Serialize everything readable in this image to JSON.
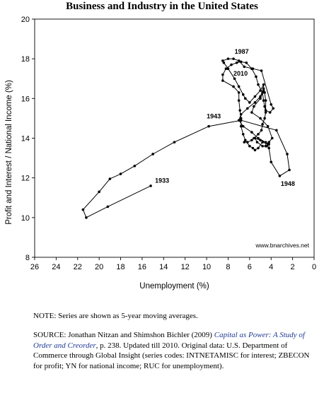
{
  "title": "Business and Industry in the United States",
  "chart_data": {
    "type": "line",
    "xlabel": "Unemployment (%)",
    "ylabel": "Profit and Interest / National Income (%)",
    "x_reversed": true,
    "xlim": [
      26,
      0
    ],
    "ylim": [
      8,
      20
    ],
    "xticks": [
      "26",
      "24",
      "22",
      "20",
      "18",
      "16",
      "14",
      "12",
      "10",
      "8",
      "6",
      "4",
      "2",
      "0"
    ],
    "yticks": [
      "8",
      "10",
      "12",
      "14",
      "16",
      "18",
      "20"
    ],
    "grid": false,
    "legend": "none",
    "series": [
      {
        "x": [
          15.2,
          19.2,
          21.2,
          21.5,
          20.0,
          19.0,
          18.0,
          16.7,
          15.0,
          13.0,
          9.8,
          6.8,
          3.5,
          2.5,
          2.3,
          3.2,
          4.0,
          4.2,
          4.2,
          5.2,
          5.8,
          6.6,
          7.0,
          6.8,
          6.2,
          5.5,
          5.0,
          4.7,
          4.7,
          5.0,
          5.5,
          6.0,
          6.4,
          6.6,
          7.0,
          7.4,
          8.0,
          8.4,
          8.5,
          8.0,
          7.5,
          7.0,
          6.5,
          5.7,
          4.9,
          4.0,
          3.8,
          4.1,
          4.5,
          4.5,
          4.6,
          4.7,
          5.0,
          5.6,
          5.8,
          5.0,
          4.3,
          3.9,
          4.2,
          4.4,
          4.8,
          5.3,
          5.5,
          5.0,
          4.5,
          4.5,
          4.3,
          4.8,
          5.2,
          5.5,
          5.7,
          6.0,
          6.4,
          6.6,
          6.8,
          6.8,
          6.9,
          7.0,
          7.0,
          7.5,
          8.5,
          8.5,
          8.2,
          7.7,
          7.2,
          6.8,
          6.3,
          5.8,
          5.4,
          5.2,
          4.8,
          4.7,
          4.6,
          4.5,
          4.6,
          4.8,
          4.9,
          5.2,
          5.6,
          5.8,
          6.2,
          6.5
        ],
        "y": [
          11.6,
          10.55,
          10.0,
          10.4,
          11.3,
          11.95,
          12.2,
          12.6,
          13.2,
          13.8,
          14.6,
          14.9,
          14.4,
          13.2,
          12.4,
          12.1,
          12.8,
          13.5,
          13.7,
          14.0,
          14.3,
          14.6,
          14.9,
          15.2,
          15.5,
          15.8,
          16.1,
          16.5,
          16.7,
          16.4,
          16.1,
          15.8,
          16.0,
          16.2,
          16.6,
          17.0,
          17.5,
          17.8,
          17.9,
          18.0,
          18.0,
          17.9,
          17.6,
          17.5,
          17.4,
          15.7,
          15.5,
          15.3,
          15.4,
          15.9,
          16.3,
          16.4,
          16.0,
          15.6,
          15.3,
          15.0,
          14.6,
          14.0,
          13.8,
          13.6,
          13.6,
          13.8,
          14.0,
          13.9,
          13.8,
          13.6,
          13.7,
          13.8,
          13.5,
          13.4,
          13.5,
          13.6,
          13.9,
          14.2,
          14.6,
          15.0,
          15.4,
          15.9,
          16.3,
          16.6,
          16.9,
          17.2,
          17.5,
          17.7,
          17.8,
          17.85,
          17.8,
          17.5,
          17.1,
          16.7,
          16.3,
          15.9,
          15.6,
          15.3,
          15.0,
          14.7,
          14.4,
          14.2,
          14.0,
          13.9,
          13.8,
          13.8
        ]
      }
    ],
    "annotations": [
      {
        "text": "1933",
        "x": 14.8,
        "y": 11.75
      },
      {
        "text": "1943",
        "x": 10.0,
        "y": 15.0
      },
      {
        "text": "1948",
        "x": 3.1,
        "y": 11.6
      },
      {
        "text": "1987",
        "x": 7.4,
        "y": 18.25
      },
      {
        "text": "2010",
        "x": 7.5,
        "y": 17.15
      }
    ],
    "watermark": "www.bnarchives.net"
  },
  "note": "NOTE: Series are shown as 5-year moving averages.",
  "source": {
    "prefix": "SOURCE: Jonathan Nitzan and Shimshon Bichler (2009) ",
    "book_title": "Capital as Power: A Study of Order and Creorder",
    "suffix": ", p. 238. Updated till 2010. Original data: U.S. Department of Commerce through Global Insight (series codes: INTNETAMISC for interest; ZBECON for profit; YN for national income; RUC for unemployment)."
  }
}
